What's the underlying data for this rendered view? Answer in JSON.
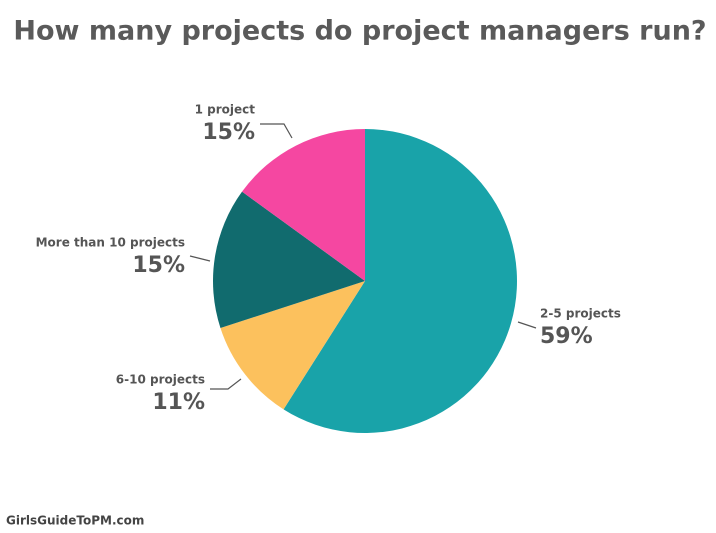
{
  "chart_data": {
    "type": "pie",
    "title": "How many projects do project managers run?",
    "categories": [
      "2-5 projects",
      "6-10 projects",
      "More than 10 projects",
      "1 project"
    ],
    "values": [
      59,
      11,
      15,
      15
    ],
    "value_labels": [
      "59%",
      "11%",
      "15%",
      "15%"
    ],
    "colors": [
      "#19a3a9",
      "#fcc15d",
      "#116b6e",
      "#f547a1"
    ],
    "source": "GirlsGuideToPM.com"
  }
}
